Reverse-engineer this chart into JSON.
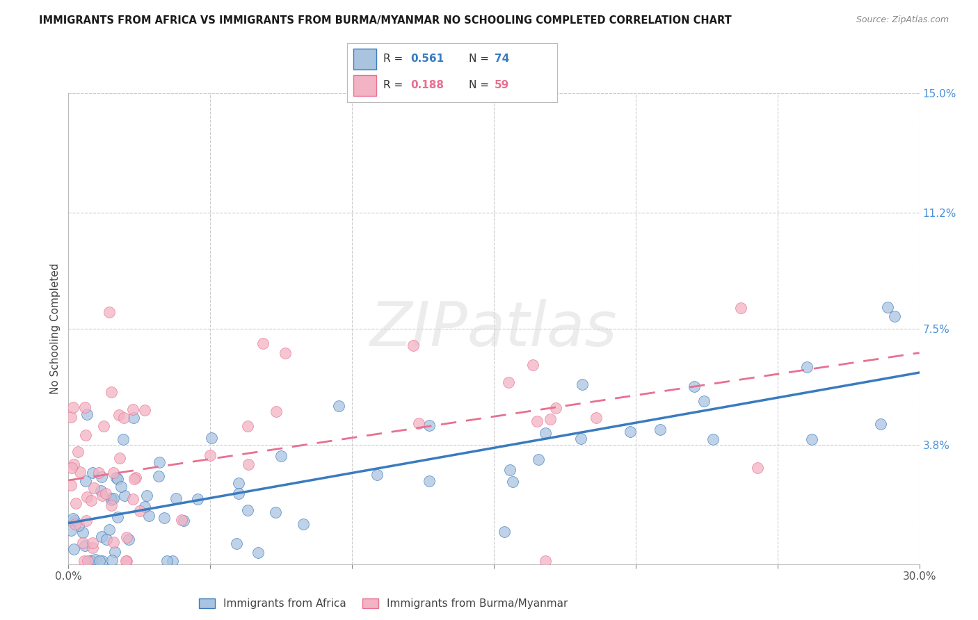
{
  "title": "IMMIGRANTS FROM AFRICA VS IMMIGRANTS FROM BURMA/MYANMAR NO SCHOOLING COMPLETED CORRELATION CHART",
  "source": "Source: ZipAtlas.com",
  "ylabel": "No Schooling Completed",
  "xlim": [
    0.0,
    0.3
  ],
  "ylim": [
    0.0,
    0.15
  ],
  "color_africa": "#aac4e0",
  "color_burma": "#f2b3c4",
  "trendline_africa_color": "#3a7bbf",
  "trendline_burma_color": "#e87090",
  "R_africa": 0.561,
  "N_africa": 74,
  "R_burma": 0.188,
  "N_burma": 59,
  "legend_label_africa": "Immigrants from Africa",
  "legend_label_burma": "Immigrants from Burma/Myanmar",
  "watermark": "ZIPatlas",
  "ytick_positions": [
    0.0,
    0.038,
    0.075,
    0.112,
    0.15
  ],
  "ytick_labels": [
    "",
    "3.8%",
    "7.5%",
    "11.2%",
    "15.0%"
  ],
  "right_axis_color": "#4a90d9",
  "grid_color": "#cccccc",
  "title_color": "#1a1a1a",
  "source_color": "#888888"
}
